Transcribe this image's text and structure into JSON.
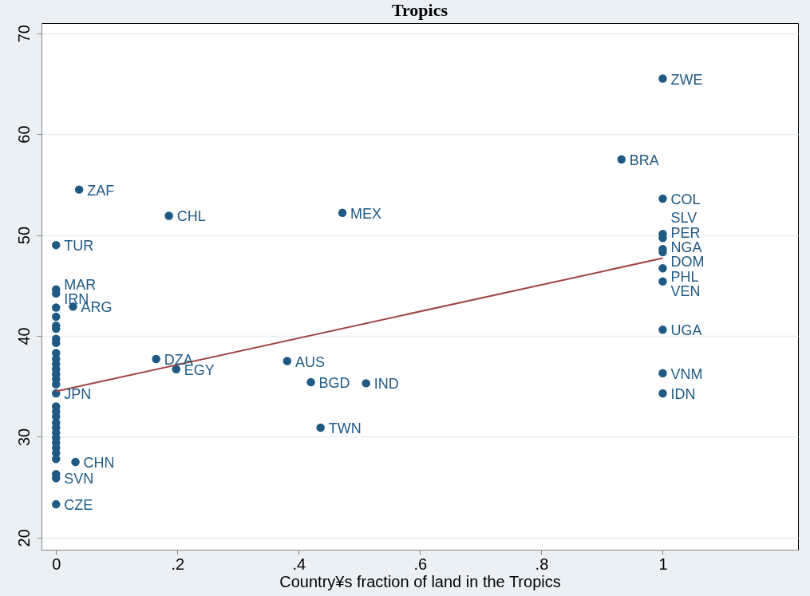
{
  "chart_data": {
    "type": "scatter",
    "title": "Tropics",
    "xlabel": "Country¥s fraction of land in the Tropics",
    "xlim": [
      -0.024,
      1.223
    ],
    "ylim": [
      18.8,
      71
    ],
    "xticks": [
      0,
      {
        "value": 0.2,
        "label": ".2"
      },
      {
        "value": 0.4,
        "label": ".4"
      },
      {
        "value": 0.6,
        "label": ".6"
      },
      {
        "value": 0.8,
        "label": ".8"
      },
      1
    ],
    "yticks": [
      20,
      30,
      40,
      50,
      60,
      70
    ],
    "grid": "y",
    "marker": "circle",
    "legend": false,
    "series": [
      {
        "color": "#1f5a85",
        "x": [
          1,
          0.932,
          1,
          1,
          1,
          1,
          1,
          1,
          1,
          1,
          1,
          1,
          0.038,
          0.186,
          0.472,
          0,
          0,
          0,
          0.028,
          0.165,
          0.198,
          0.381,
          0.42,
          0.511,
          0.436,
          0,
          0,
          0,
          0.032,
          0,
          0,
          0,
          0,
          0,
          0,
          0,
          0,
          0,
          0,
          0,
          0,
          0,
          0,
          0,
          0,
          0,
          0,
          0,
          0,
          0,
          0,
          0,
          0,
          0
        ],
        "values": [
          65.5,
          57.5,
          53.6,
          50.1,
          49.7,
          48.6,
          48.3,
          46.7,
          45.4,
          40.6,
          36.3,
          34.3,
          54.5,
          51.9,
          52.2,
          49.0,
          44.6,
          44.2,
          42.9,
          37.7,
          36.7,
          37.5,
          35.4,
          35.3,
          30.9,
          34.3,
          23.3,
          25.9,
          27.5,
          42.8,
          41.9,
          41.0,
          40.7,
          39.7,
          39.3,
          38.3,
          37.7,
          37.2,
          36.7,
          36.2,
          35.7,
          35.2,
          33.0,
          32.5,
          32.0,
          31.4,
          30.9,
          30.4,
          29.9,
          29.4,
          28.9,
          28.4,
          27.8,
          26.3
        ]
      },
      {
        "type": "line",
        "marker": "none",
        "color": "#a04545",
        "x": [
          0,
          1
        ],
        "values": [
          34.5,
          47.7
        ]
      }
    ],
    "annotations": [
      {
        "text": "ZWE",
        "x": 1,
        "y": 65.5
      },
      {
        "text": "BRA",
        "x": 0.932,
        "y": 57.5
      },
      {
        "text": "COL",
        "x": 1,
        "y": 53.6
      },
      {
        "text": "SLV",
        "x": 1,
        "y": 50.1
      },
      {
        "text": "PER",
        "x": 1,
        "y": 49.7
      },
      {
        "text": "NGA",
        "x": 1,
        "y": 48.6
      },
      {
        "text": "DOM",
        "x": 1,
        "y": 48.3
      },
      {
        "text": "PHL",
        "x": 1,
        "y": 46.7
      },
      {
        "text": "VEN",
        "x": 1,
        "y": 45.4
      },
      {
        "text": "UGA",
        "x": 1,
        "y": 40.6
      },
      {
        "text": "VNM",
        "x": 1,
        "y": 36.3
      },
      {
        "text": "IDN",
        "x": 1,
        "y": 34.3
      },
      {
        "text": "ZAF",
        "x": 0.038,
        "y": 54.5
      },
      {
        "text": "CHL",
        "x": 0.186,
        "y": 51.9
      },
      {
        "text": "MEX",
        "x": 0.472,
        "y": 52.2
      },
      {
        "text": "TUR",
        "x": 0,
        "y": 49.0
      },
      {
        "text": "MAR",
        "x": 0,
        "y": 44.6
      },
      {
        "text": "IRN",
        "x": 0,
        "y": 44.2
      },
      {
        "text": "ARG",
        "x": 0.028,
        "y": 42.9
      },
      {
        "text": "DZA",
        "x": 0.165,
        "y": 37.7
      },
      {
        "text": "EGY",
        "x": 0.198,
        "y": 36.7
      },
      {
        "text": "AUS",
        "x": 0.381,
        "y": 37.5
      },
      {
        "text": "BGD",
        "x": 0.42,
        "y": 35.4
      },
      {
        "text": "IND",
        "x": 0.511,
        "y": 35.3
      },
      {
        "text": "TWN",
        "x": 0.436,
        "y": 30.9
      },
      {
        "text": "JPN",
        "x": 0,
        "y": 34.3
      },
      {
        "text": "CZE",
        "x": 0,
        "y": 23.3
      },
      {
        "text": "SVN",
        "x": 0,
        "y": 25.9
      },
      {
        "text": "CHN",
        "x": 0.032,
        "y": 27.5
      }
    ]
  }
}
